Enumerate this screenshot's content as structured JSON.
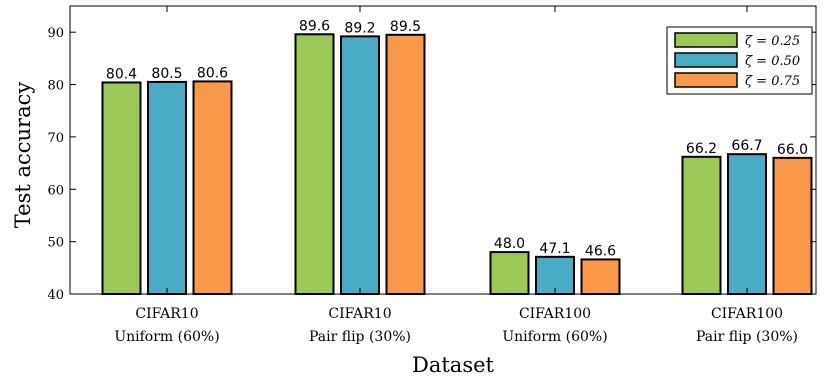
{
  "chart_data": {
    "type": "bar",
    "categories": [
      [
        "CIFAR10",
        "Uniform (60%)"
      ],
      [
        "CIFAR10",
        "Pair flip (30%)"
      ],
      [
        "CIFAR100",
        "Uniform (60%)"
      ],
      [
        "CIFAR100",
        "Pair flip (30%)"
      ]
    ],
    "series": [
      {
        "name": "ζ = 0.25",
        "color": "#9bc857",
        "values": [
          80.4,
          89.6,
          48.0,
          66.2
        ]
      },
      {
        "name": "ζ = 0.50",
        "color": "#49abc6",
        "values": [
          80.5,
          89.2,
          47.1,
          66.7
        ]
      },
      {
        "name": "ζ = 0.75",
        "color": "#f89848",
        "values": [
          80.6,
          89.5,
          46.6,
          66.0
        ]
      }
    ],
    "xlabel": "Dataset",
    "ylabel": "Test accuracy",
    "ylim": [
      40,
      95
    ],
    "yticks": [
      40,
      50,
      60,
      70,
      80,
      90
    ],
    "grid": false,
    "legend": "top-right"
  }
}
